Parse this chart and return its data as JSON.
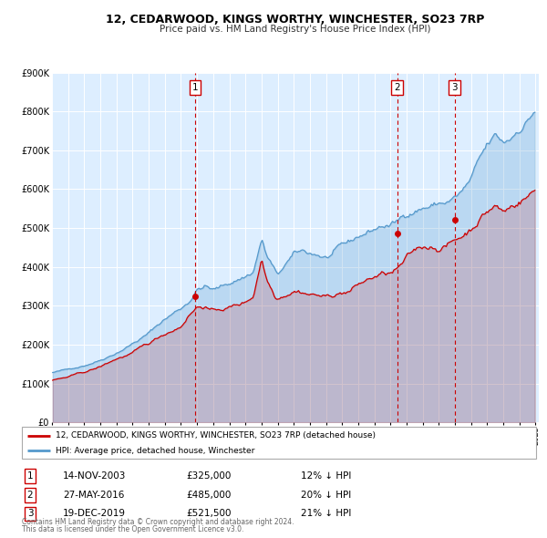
{
  "title": "12, CEDARWOOD, KINGS WORTHY, WINCHESTER, SO23 7RP",
  "subtitle": "Price paid vs. HM Land Registry's House Price Index (HPI)",
  "legend_line1": "12, CEDARWOOD, KINGS WORTHY, WINCHESTER, SO23 7RP (detached house)",
  "legend_line2": "HPI: Average price, detached house, Winchester",
  "footer1": "Contains HM Land Registry data © Crown copyright and database right 2024.",
  "footer2": "This data is licensed under the Open Government Licence v3.0.",
  "price_paid_color": "#cc0000",
  "hpi_color": "#5599cc",
  "hpi_fill_color": "#ddeeff",
  "plot_bg_color": "#ddeeff",
  "ylim": [
    0,
    900000
  ],
  "xlim_start": 1995.0,
  "xlim_end": 2025.2,
  "sales": [
    {
      "date": 2003.87,
      "price": 325000,
      "label": "1"
    },
    {
      "date": 2016.41,
      "price": 485000,
      "label": "2"
    },
    {
      "date": 2019.97,
      "price": 521500,
      "label": "3"
    }
  ],
  "table_rows": [
    {
      "num": "1",
      "date": "14-NOV-2003",
      "price": "£325,000",
      "pct": "12% ↓ HPI"
    },
    {
      "num": "2",
      "date": "27-MAY-2016",
      "price": "£485,000",
      "pct": "20% ↓ HPI"
    },
    {
      "num": "3",
      "date": "19-DEC-2019",
      "price": "£521,500",
      "pct": "21% ↓ HPI"
    }
  ]
}
